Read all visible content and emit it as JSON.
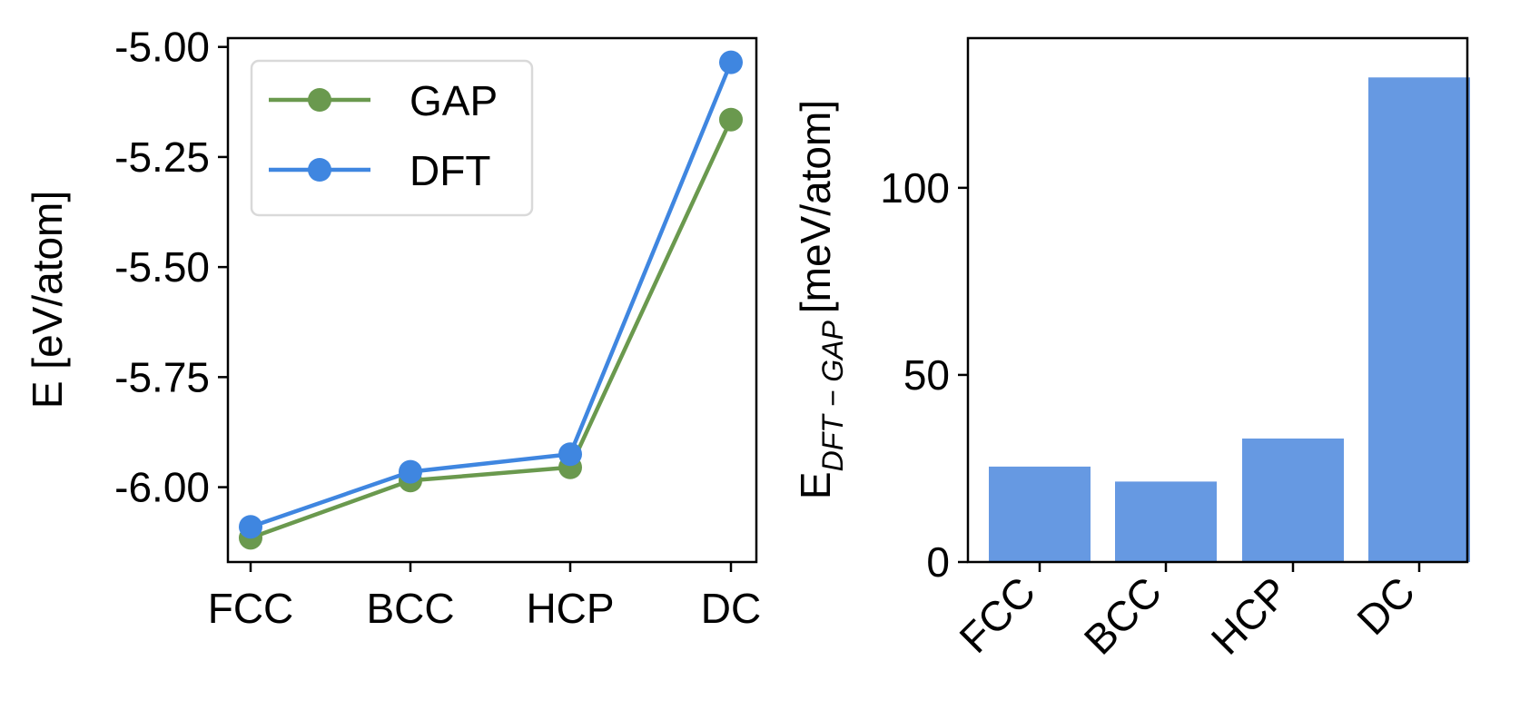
{
  "chart_data": [
    {
      "type": "line",
      "categories": [
        "FCC",
        "BCC",
        "HCP",
        "DC"
      ],
      "series": [
        {
          "name": "GAP",
          "values": [
            -6.115,
            -5.985,
            -5.955,
            -5.165
          ],
          "color": "#6a994e"
        },
        {
          "name": "DFT",
          "values": [
            -6.09,
            -5.965,
            -5.925,
            -5.035
          ],
          "color": "#3f86e0"
        }
      ],
      "ylabel": "E [eV/atom]",
      "xlabel": "",
      "ylim": [
        -6.17,
        -4.98
      ],
      "yticks": [
        -5.0,
        -5.25,
        -5.5,
        -5.75,
        -6.0
      ],
      "ytick_labels": [
        "-5.00",
        "-5.25",
        "-5.50",
        "-5.75",
        "-6.00"
      ],
      "legend_position": "top-left",
      "grid": false
    },
    {
      "type": "bar",
      "categories": [
        "FCC",
        "BCC",
        "HCP",
        "DC"
      ],
      "values": [
        25.5,
        21.5,
        33,
        129.5
      ],
      "color": "#6699e2",
      "ylabel_main": "E",
      "ylabel_sub": "DFT − GAP",
      "ylabel_unit": "[meV/atom]",
      "xlabel": "",
      "ylim": [
        0,
        140
      ],
      "yticks": [
        0,
        50,
        100
      ],
      "ytick_labels": [
        "0",
        "50",
        "100"
      ],
      "grid": false
    }
  ]
}
